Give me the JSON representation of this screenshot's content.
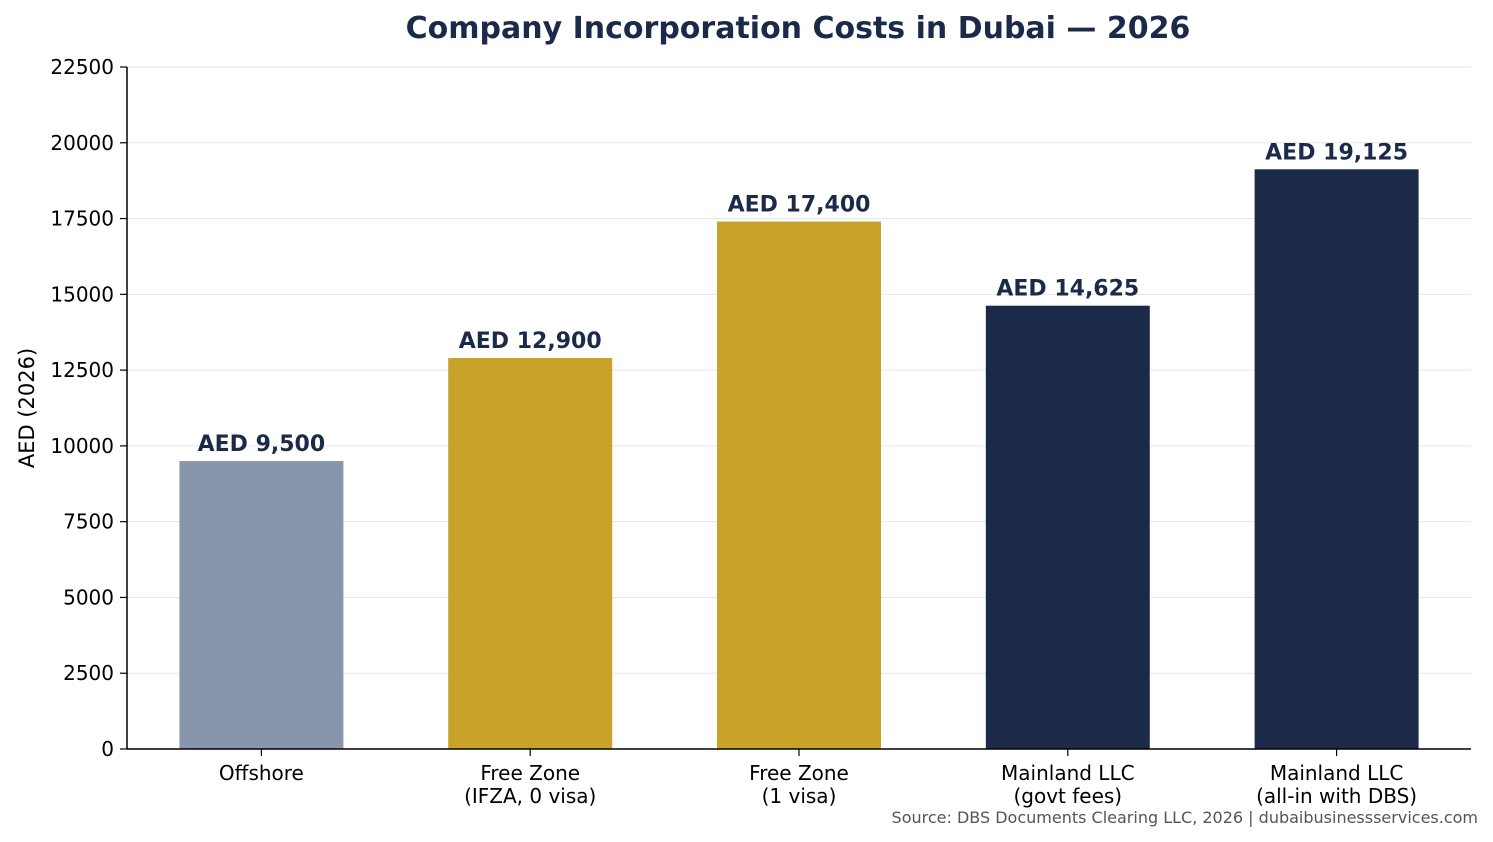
{
  "chart_data": {
    "type": "bar",
    "title": "Company Incorporation Costs in Dubai — 2026",
    "xlabel": "",
    "ylabel": "AED (2026)",
    "ylim": [
      0,
      22500
    ],
    "yticks": [
      0,
      2500,
      5000,
      7500,
      10000,
      12500,
      15000,
      17500,
      20000,
      22500
    ],
    "grid": "horizontal",
    "categories": [
      [
        "Offshore"
      ],
      [
        "Free Zone",
        "(IFZA, 0 visa)"
      ],
      [
        "Free Zone",
        "(1 visa)"
      ],
      [
        "Mainland LLC",
        "(govt fees)"
      ],
      [
        "Mainland LLC",
        "(all-in with DBS)"
      ]
    ],
    "values": [
      9500,
      12900,
      17400,
      14625,
      19125
    ],
    "value_labels": [
      "AED 9,500",
      "AED 12,900",
      "AED 17,400",
      "AED 14,625",
      "AED 19,125"
    ],
    "bar_colors": [
      "#8796ab",
      "#c9a22a",
      "#c9a22a",
      "#1c2a4a",
      "#1c2a4a"
    ],
    "source": "Source: DBS Documents Clearing LLC, 2026  |  dubaibusinessservices.com"
  }
}
